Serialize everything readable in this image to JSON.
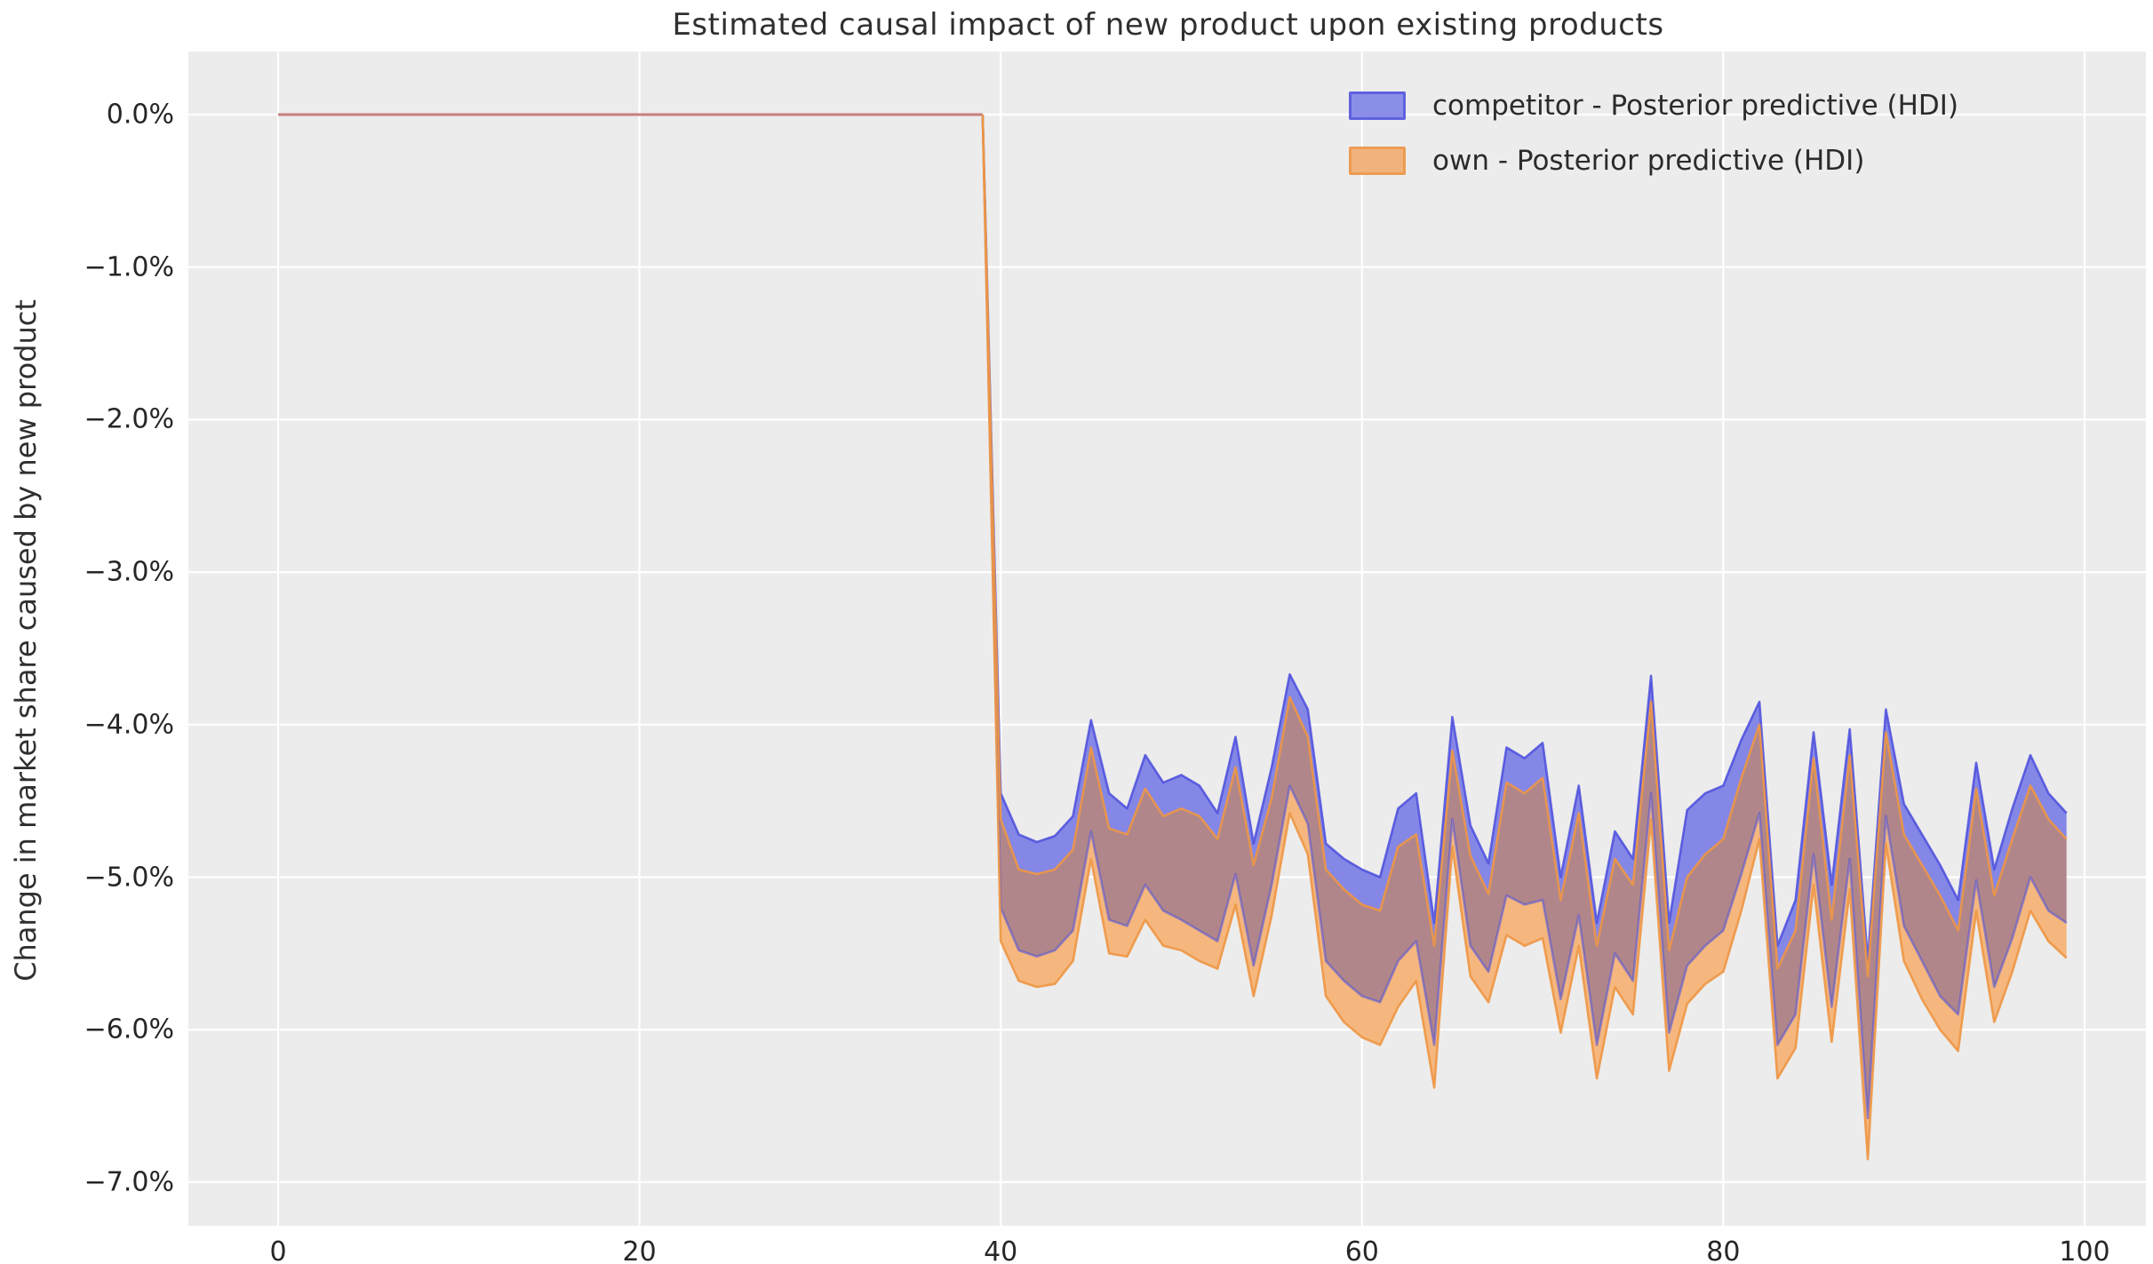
{
  "figure": {
    "title": "Estimated causal impact of new product upon existing products",
    "background_color": "#ffffff",
    "axes_background_color": "#ececec",
    "grid_color": "#ffffff",
    "text_color": "#2f2f2f"
  },
  "y_axis": {
    "label": "Change in market share caused by new product",
    "tick_labels": [
      "0.0%",
      "−1.0%",
      "−2.0%",
      "−3.0%",
      "−4.0%",
      "−5.0%",
      "−6.0%",
      "−7.0%"
    ],
    "tick_values": [
      0,
      -1,
      -2,
      -3,
      -4,
      -5,
      -6,
      -7
    ]
  },
  "x_axis": {
    "label": "",
    "tick_labels": [
      "0",
      "20",
      "40",
      "60",
      "80",
      "100"
    ],
    "tick_values": [
      0,
      20,
      40,
      60,
      80,
      100
    ]
  },
  "legend": {
    "entries": [
      {
        "label": "competitor - Posterior predictive (HDI)",
        "fill": "#8B8EE9",
        "edge": "#5F62DE"
      },
      {
        "label": "own - Posterior predictive (HDI)",
        "fill": "#F2B27E",
        "edge": "#EC9C52"
      }
    ]
  },
  "chart_data": {
    "type": "area",
    "title": "Estimated causal impact of new product upon existing products",
    "xlabel": "",
    "ylabel": "Change in market share caused by new product",
    "y_unit": "percent",
    "xlim": [
      -5,
      103.4
    ],
    "ylim_pct": [
      0.48,
      -7.28
    ],
    "grid": true,
    "legend_position": "upper right",
    "description": "Two overlapping posterior-predictive HDI bands; impact is 0% before the intervention at x=40, then drops to roughly -4% to -7%.",
    "pre_period": {
      "x_start": 0,
      "x_end": 39,
      "value_pct": 0,
      "line_color": "#C67F7E"
    },
    "x_start": 40,
    "x_step": 1,
    "overlap_fill": "#B0868B",
    "series": [
      {
        "name": "competitor - Posterior predictive (HDI)",
        "band_fill": "#8587E6",
        "edge_color": "#4B4EDD",
        "upper_pct": [
          -4.45,
          -4.72,
          -4.77,
          -4.73,
          -4.6,
          -3.97,
          -4.45,
          -4.55,
          -4.2,
          -4.38,
          -4.33,
          -4.4,
          -4.58,
          -4.08,
          -4.78,
          -4.28,
          -3.67,
          -3.9,
          -4.78,
          -4.88,
          -4.95,
          -5.0,
          -4.55,
          -4.45,
          -5.3,
          -3.95,
          -4.66,
          -4.91,
          -4.15,
          -4.22,
          -4.12,
          -5.0,
          -4.4,
          -5.3,
          -4.7,
          -4.88,
          -3.68,
          -5.3,
          -4.56,
          -4.45,
          -4.4,
          -4.1,
          -3.85,
          -5.45,
          -5.15,
          -4.05,
          -5.05,
          -4.03,
          -5.55,
          -3.9,
          -4.52,
          -4.72,
          -4.92,
          -5.15,
          -4.25,
          -4.95,
          -4.55,
          -4.2,
          -4.45,
          -4.58
        ],
        "lower_pct": [
          -5.2,
          -5.48,
          -5.52,
          -5.48,
          -5.35,
          -4.7,
          -5.28,
          -5.32,
          -5.05,
          -5.22,
          -5.28,
          -5.35,
          -5.42,
          -4.98,
          -5.58,
          -5.05,
          -4.4,
          -4.65,
          -5.55,
          -5.68,
          -5.78,
          -5.82,
          -5.55,
          -5.42,
          -6.1,
          -4.62,
          -5.45,
          -5.62,
          -5.12,
          -5.18,
          -5.15,
          -5.8,
          -5.25,
          -6.1,
          -5.5,
          -5.68,
          -4.45,
          -6.02,
          -5.58,
          -5.45,
          -5.35,
          -4.98,
          -4.58,
          -6.1,
          -5.9,
          -4.85,
          -5.85,
          -4.88,
          -6.58,
          -4.6,
          -5.32,
          -5.55,
          -5.78,
          -5.9,
          -5.02,
          -5.72,
          -5.4,
          -5.0,
          -5.22,
          -5.3
        ]
      },
      {
        "name": "own - Posterior predictive (HDI)",
        "band_fill": "#F5B77E",
        "edge_color": "#EE9644",
        "upper_pct": [
          -4.62,
          -4.95,
          -4.98,
          -4.95,
          -4.82,
          -4.15,
          -4.68,
          -4.72,
          -4.42,
          -4.6,
          -4.55,
          -4.6,
          -4.75,
          -4.28,
          -4.92,
          -4.48,
          -3.82,
          -4.08,
          -4.95,
          -5.08,
          -5.18,
          -5.22,
          -4.8,
          -4.72,
          -5.45,
          -4.17,
          -4.86,
          -5.11,
          -4.38,
          -4.45,
          -4.35,
          -5.15,
          -4.58,
          -5.45,
          -4.88,
          -5.05,
          -3.85,
          -5.48,
          -5.0,
          -4.85,
          -4.75,
          -4.35,
          -4.0,
          -5.6,
          -5.35,
          -4.22,
          -5.28,
          -4.2,
          -5.65,
          -4.05,
          -4.72,
          -4.92,
          -5.12,
          -5.35,
          -4.42,
          -5.12,
          -4.75,
          -4.4,
          -4.62,
          -4.75
        ],
        "lower_pct": [
          -5.42,
          -5.68,
          -5.72,
          -5.7,
          -5.55,
          -4.88,
          -5.5,
          -5.52,
          -5.28,
          -5.45,
          -5.48,
          -5.55,
          -5.6,
          -5.18,
          -5.78,
          -5.25,
          -4.58,
          -4.85,
          -5.78,
          -5.95,
          -6.05,
          -6.1,
          -5.85,
          -5.68,
          -6.38,
          -4.8,
          -5.65,
          -5.82,
          -5.38,
          -5.45,
          -5.4,
          -6.02,
          -5.45,
          -6.32,
          -5.72,
          -5.9,
          -4.62,
          -6.27,
          -5.83,
          -5.7,
          -5.62,
          -5.22,
          -4.75,
          -6.32,
          -6.12,
          -5.05,
          -6.08,
          -5.08,
          -6.85,
          -4.78,
          -5.55,
          -5.8,
          -6.0,
          -6.14,
          -5.22,
          -5.95,
          -5.62,
          -5.22,
          -5.42,
          -5.53
        ]
      }
    ]
  }
}
